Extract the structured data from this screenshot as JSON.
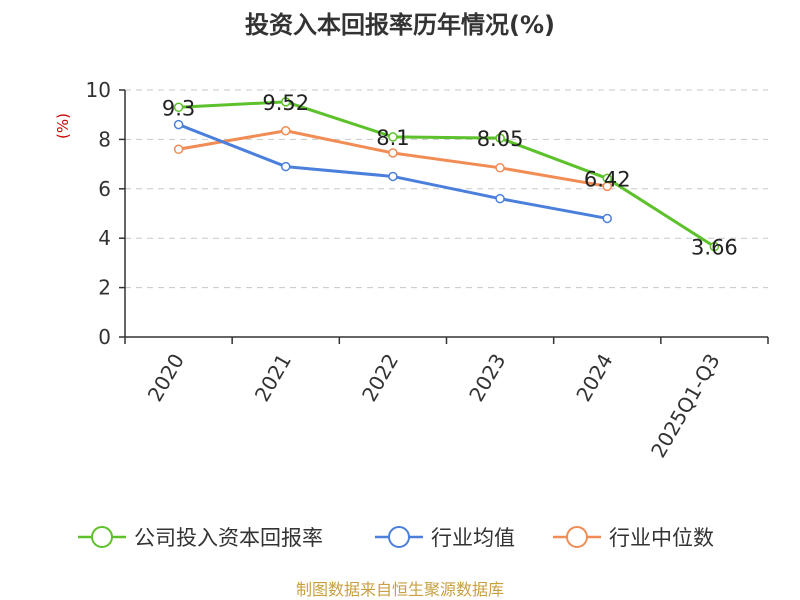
{
  "chart_data": {
    "type": "line",
    "title": "投资入本回报率历年情况(%)",
    "ylabel": "(%)",
    "xlabel": "",
    "categories": [
      "2020",
      "2021",
      "2022",
      "2023",
      "2024",
      "2025Q1-Q3"
    ],
    "ylim": [
      0,
      10
    ],
    "yticks": [
      0,
      2,
      4,
      6,
      8,
      10
    ],
    "grid": true,
    "legend_position": "bottom",
    "series": [
      {
        "name": "公司投入资本回报率",
        "color": "#5cc12a",
        "values": [
          9.3,
          9.52,
          8.1,
          8.05,
          6.42,
          3.66
        ],
        "labels": [
          "9.3",
          "9.52",
          "8.1",
          "8.05",
          "6.42",
          "3.66"
        ]
      },
      {
        "name": "行业均值",
        "color": "#4a7fdc",
        "values": [
          8.6,
          6.9,
          6.5,
          5.6,
          4.8,
          null
        ]
      },
      {
        "name": "行业中位数",
        "color": "#f28c55",
        "values": [
          7.6,
          8.35,
          7.45,
          6.85,
          6.1,
          null
        ]
      }
    ],
    "source": "制图数据来自恒生聚源数据库"
  }
}
